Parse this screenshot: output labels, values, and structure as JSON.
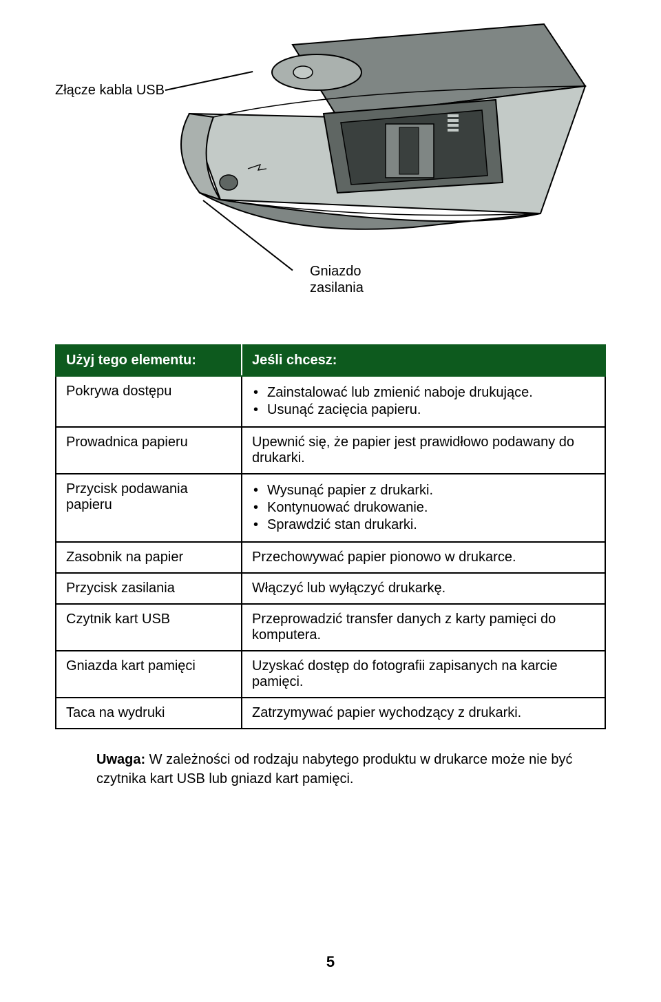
{
  "diagram": {
    "label_usb": "Złącze kabla USB",
    "label_power_line1": "Gniazdo",
    "label_power_line2": "zasilania"
  },
  "table": {
    "header_left": "Użyj tego elementu:",
    "header_right": "Jeśli chcesz:",
    "rows": [
      {
        "left": "Pokrywa dostępu",
        "right_type": "list",
        "items": [
          "Zainstalować lub zmienić naboje drukujące.",
          "Usunąć zacięcia papieru."
        ]
      },
      {
        "left": "Prowadnica papieru",
        "right_type": "text",
        "text": "Upewnić się, że papier jest prawidłowo podawany do drukarki."
      },
      {
        "left": "Przycisk podawania papieru",
        "right_type": "list",
        "items": [
          "Wysunąć papier z drukarki.",
          "Kontynuować drukowanie.",
          "Sprawdzić stan drukarki."
        ]
      },
      {
        "left": "Zasobnik na papier",
        "right_type": "text",
        "text": "Przechowywać papier pionowo w drukarce."
      },
      {
        "left": "Przycisk zasilania",
        "right_type": "text",
        "text": "Włączyć lub wyłączyć drukarkę."
      },
      {
        "left": "Czytnik kart USB",
        "right_type": "text",
        "text": "Przeprowadzić transfer danych z karty pamięci do komputera."
      },
      {
        "left": "Gniazda kart pamięci",
        "right_type": "text",
        "text": "Uzyskać dostęp do fotografii zapisanych na karcie pamięci."
      },
      {
        "left": "Taca na wydruki",
        "right_type": "text",
        "text": "Zatrzymywać papier wychodzący z drukarki."
      }
    ]
  },
  "note": {
    "bold": "Uwaga:",
    "text": " W zależności od rodzaju nabytego produktu w drukarce może nie być czytnika kart USB lub gniazd kart pamięci."
  },
  "page_number": "5",
  "colors": {
    "header_bg": "#0d5a1e",
    "printer_body": "#c3cac7",
    "printer_dark": "#7f8684",
    "printer_top": "#aab1ae",
    "printer_mid": "#5f6663",
    "printer_inner": "#3a403e"
  }
}
